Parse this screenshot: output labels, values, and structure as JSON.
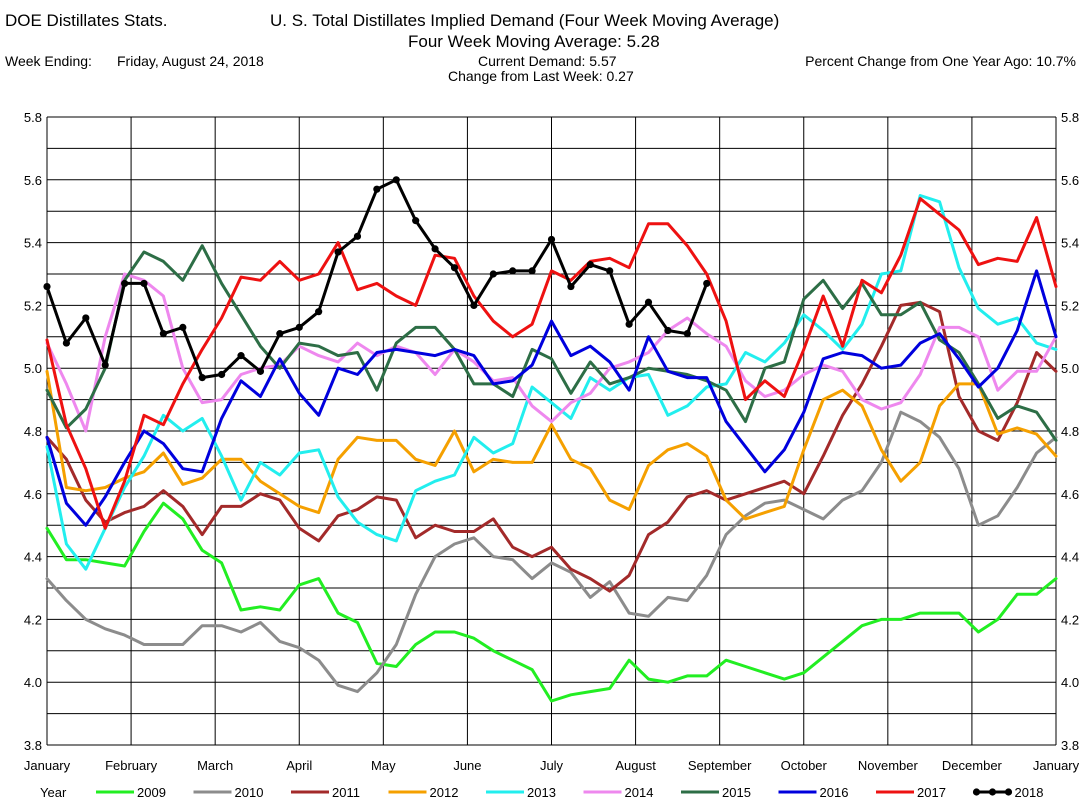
{
  "header": {
    "app_title": "DOE Distillates Stats.",
    "chart_title": "U. S. Total Distillates Implied Demand  (Four Week Moving Average)",
    "subtitle": "Four Week Moving Average:  5.28",
    "week_ending_label": "Week Ending:",
    "week_ending_value": "Friday, August 24, 2018",
    "current_demand": "Current Demand:  5.57",
    "change_from_last_week": "Change from Last Week:  0.27",
    "percent_change": "Percent Change from One Year Ago:  10.7%"
  },
  "chart_data": {
    "type": "line",
    "title": "U. S. Total Distillates Implied Demand  (Four Week Moving Average)",
    "xlabel": "",
    "ylabel": "",
    "ylim": [
      3.8,
      5.8
    ],
    "yticks": [
      "3.8",
      "4.0",
      "4.2",
      "4.4",
      "4.6",
      "4.8",
      "5.0",
      "5.2",
      "5.4",
      "5.6",
      "5.8"
    ],
    "x_month_labels": [
      "January",
      "February",
      "March",
      "April",
      "May",
      "June",
      "July",
      "August",
      "September",
      "October",
      "November",
      "December",
      "January"
    ],
    "grid": true,
    "legend_placement": "bottom",
    "legend_title": "Year",
    "x_unit": "week of year (1-52)",
    "series": [
      {
        "name": "2009",
        "color": "#22ee22",
        "marker": false,
        "values": [
          4.49,
          4.39,
          4.39,
          4.38,
          4.37,
          4.48,
          4.57,
          4.52,
          4.42,
          4.38,
          4.23,
          4.24,
          4.23,
          4.31,
          4.33,
          4.22,
          4.19,
          4.06,
          4.05,
          4.12,
          4.16,
          4.16,
          4.14,
          4.1,
          4.07,
          4.04,
          3.94,
          3.96,
          3.97,
          3.98,
          4.07,
          4.01,
          4.0,
          4.02,
          4.02,
          4.07,
          4.05,
          4.03,
          4.01,
          4.03,
          4.08,
          4.13,
          4.18,
          4.2,
          4.2,
          4.22,
          4.22,
          4.22,
          4.16,
          4.2,
          4.28,
          4.28,
          4.33
        ]
      },
      {
        "name": "2010",
        "color": "#8c8c8c",
        "marker": false,
        "values": [
          4.33,
          4.26,
          4.2,
          4.17,
          4.15,
          4.12,
          4.12,
          4.12,
          4.18,
          4.18,
          4.16,
          4.19,
          4.13,
          4.11,
          4.07,
          3.99,
          3.97,
          4.03,
          4.12,
          4.28,
          4.4,
          4.44,
          4.46,
          4.4,
          4.39,
          4.33,
          4.38,
          4.35,
          4.27,
          4.32,
          4.22,
          4.21,
          4.27,
          4.26,
          4.34,
          4.47,
          4.53,
          4.57,
          4.58,
          4.55,
          4.52,
          4.58,
          4.61,
          4.7,
          4.86,
          4.83,
          4.78,
          4.68,
          4.5,
          4.53,
          4.62,
          4.73,
          4.78
        ]
      },
      {
        "name": "2011",
        "color": "#a32a2a",
        "marker": false,
        "values": [
          4.78,
          4.71,
          4.58,
          4.51,
          4.54,
          4.56,
          4.61,
          4.56,
          4.47,
          4.56,
          4.56,
          4.6,
          4.58,
          4.49,
          4.45,
          4.53,
          4.55,
          4.59,
          4.58,
          4.46,
          4.5,
          4.48,
          4.48,
          4.52,
          4.43,
          4.4,
          4.43,
          4.36,
          4.33,
          4.29,
          4.34,
          4.47,
          4.51,
          4.59,
          4.61,
          4.58,
          4.6,
          4.62,
          4.64,
          4.6,
          4.72,
          4.85,
          4.95,
          5.07,
          5.2,
          5.21,
          5.18,
          4.91,
          4.8,
          4.77,
          4.89,
          5.05,
          4.99
        ]
      },
      {
        "name": "2012",
        "color": "#f5a000",
        "marker": false,
        "values": [
          4.99,
          4.62,
          4.61,
          4.62,
          4.65,
          4.67,
          4.73,
          4.63,
          4.65,
          4.71,
          4.71,
          4.64,
          4.6,
          4.56,
          4.54,
          4.71,
          4.78,
          4.77,
          4.77,
          4.71,
          4.69,
          4.8,
          4.67,
          4.71,
          4.7,
          4.7,
          4.82,
          4.71,
          4.68,
          4.58,
          4.55,
          4.69,
          4.74,
          4.76,
          4.72,
          4.58,
          4.52,
          4.54,
          4.56,
          4.74,
          4.9,
          4.93,
          4.88,
          4.74,
          4.64,
          4.7,
          4.88,
          4.95,
          4.95,
          4.79,
          4.81,
          4.79,
          4.72
        ]
      },
      {
        "name": "2013",
        "color": "#22eeee",
        "marker": false,
        "values": [
          4.75,
          4.44,
          4.36,
          4.49,
          4.62,
          4.72,
          4.85,
          4.8,
          4.84,
          4.72,
          4.58,
          4.7,
          4.66,
          4.73,
          4.74,
          4.59,
          4.51,
          4.47,
          4.45,
          4.61,
          4.64,
          4.66,
          4.78,
          4.73,
          4.76,
          4.94,
          4.89,
          4.84,
          4.97,
          4.93,
          4.97,
          4.98,
          4.85,
          4.88,
          4.94,
          4.95,
          5.05,
          5.02,
          5.08,
          5.17,
          5.12,
          5.06,
          5.14,
          5.3,
          5.31,
          5.55,
          5.53,
          5.32,
          5.19,
          5.14,
          5.16,
          5.08,
          5.06
        ]
      },
      {
        "name": "2014",
        "color": "#ee88ee",
        "marker": false,
        "values": [
          5.08,
          4.95,
          4.8,
          5.1,
          5.3,
          5.28,
          5.23,
          5.0,
          4.89,
          4.9,
          4.98,
          5.0,
          5.01,
          5.07,
          5.04,
          5.02,
          5.08,
          5.04,
          5.07,
          5.05,
          4.98,
          5.06,
          5.02,
          4.96,
          4.97,
          4.88,
          4.83,
          4.89,
          4.92,
          5.0,
          5.02,
          5.05,
          5.12,
          5.16,
          5.11,
          5.07,
          4.96,
          4.91,
          4.93,
          4.98,
          5.01,
          4.99,
          4.9,
          4.87,
          4.89,
          4.98,
          5.13,
          5.13,
          5.1,
          4.93,
          4.99,
          4.99,
          5.1
        ]
      },
      {
        "name": "2015",
        "color": "#2d6e46",
        "marker": false,
        "values": [
          4.93,
          4.81,
          4.87,
          5.0,
          5.28,
          5.37,
          5.34,
          5.28,
          5.39,
          5.27,
          5.17,
          5.07,
          5.0,
          5.08,
          5.07,
          5.04,
          5.05,
          4.93,
          5.08,
          5.13,
          5.13,
          5.06,
          4.95,
          4.95,
          4.91,
          5.06,
          5.03,
          4.92,
          5.02,
          4.95,
          4.97,
          5.0,
          4.99,
          4.98,
          4.96,
          4.93,
          4.83,
          5.0,
          5.02,
          5.22,
          5.28,
          5.19,
          5.27,
          5.17,
          5.17,
          5.21,
          5.09,
          5.05,
          4.95,
          4.84,
          4.88,
          4.86,
          4.77
        ]
      },
      {
        "name": "2016",
        "color": "#0000dd",
        "marker": false,
        "values": [
          4.78,
          4.57,
          4.5,
          4.59,
          4.7,
          4.8,
          4.76,
          4.68,
          4.67,
          4.84,
          4.96,
          4.91,
          5.03,
          4.92,
          4.85,
          5.0,
          4.98,
          5.05,
          5.06,
          5.05,
          5.04,
          5.06,
          5.04,
          4.95,
          4.96,
          5.01,
          5.15,
          5.04,
          5.07,
          5.02,
          4.93,
          5.1,
          4.99,
          4.97,
          4.97,
          4.83,
          4.75,
          4.67,
          4.74,
          4.86,
          5.03,
          5.05,
          5.04,
          5.0,
          5.01,
          5.08,
          5.11,
          5.03,
          4.94,
          5.0,
          5.12,
          5.31,
          5.1
        ]
      },
      {
        "name": "2017",
        "color": "#ee1111",
        "marker": false,
        "values": [
          5.09,
          4.82,
          4.68,
          4.49,
          4.64,
          4.85,
          4.82,
          4.95,
          5.06,
          5.16,
          5.29,
          5.28,
          5.34,
          5.28,
          5.3,
          5.4,
          5.25,
          5.27,
          5.23,
          5.2,
          5.36,
          5.35,
          5.23,
          5.15,
          5.1,
          5.14,
          5.31,
          5.28,
          5.34,
          5.35,
          5.32,
          5.46,
          5.46,
          5.39,
          5.3,
          5.15,
          4.9,
          4.96,
          4.91,
          5.06,
          5.23,
          5.07,
          5.28,
          5.24,
          5.36,
          5.54,
          5.49,
          5.44,
          5.33,
          5.35,
          5.34,
          5.48,
          5.26
        ]
      },
      {
        "name": "2018",
        "color": "#000000",
        "marker": true,
        "values": [
          5.26,
          5.08,
          5.16,
          5.01,
          5.27,
          5.27,
          5.11,
          5.13,
          4.97,
          4.98,
          5.04,
          4.99,
          5.11,
          5.13,
          5.18,
          5.37,
          5.42,
          5.57,
          5.6,
          5.47,
          5.38,
          5.32,
          5.2,
          5.3,
          5.31,
          5.31,
          5.41,
          5.26,
          5.33,
          5.31,
          5.14,
          5.21,
          5.12,
          5.11,
          5.27
        ]
      }
    ]
  }
}
